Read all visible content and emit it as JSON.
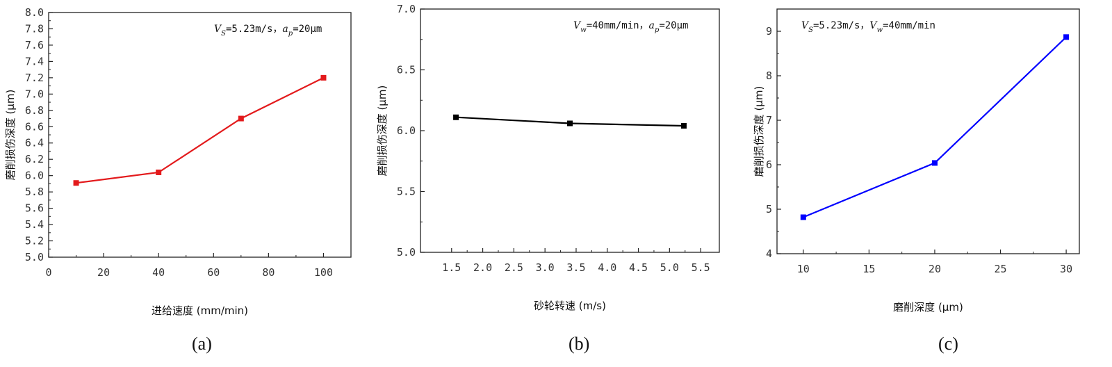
{
  "chart_data": [
    {
      "type": "line",
      "panel_label": "(a)",
      "xlabel": "进给速度 (mm/min)",
      "ylabel": "磨削损伤深度 (μm)",
      "annotation": {
        "v1": "V",
        "s1": "S",
        "t1": "=5.23m/s，",
        "v2": "a",
        "s2": "p",
        "t2": "=20μm"
      },
      "xlim": [
        0,
        110
      ],
      "ylim": [
        5.0,
        8.0
      ],
      "xticks": [
        "0",
        "20",
        "40",
        "60",
        "80",
        "100"
      ],
      "yticks": [
        "5.0",
        "5.2",
        "5.4",
        "5.6",
        "5.8",
        "6.0",
        "6.2",
        "6.4",
        "6.6",
        "6.8",
        "7.0",
        "7.2",
        "7.4",
        "7.6",
        "7.8",
        "8.0"
      ],
      "color": "#e31a1c",
      "series": [
        {
          "x": [
            10,
            40,
            70,
            100
          ],
          "y": [
            5.91,
            6.04,
            6.7,
            7.2
          ]
        }
      ]
    },
    {
      "type": "line",
      "panel_label": "(b)",
      "xlabel": "砂轮转速 (m/s)",
      "ylabel": "磨削损伤深度 (μm)",
      "annotation": {
        "v1": "V",
        "s1": "w",
        "t1": "=40mm/min，",
        "v2": "a",
        "s2": "p",
        "t2": "=20μm"
      },
      "xlim": [
        1.0,
        5.8
      ],
      "ylim": [
        5.0,
        7.0
      ],
      "xticks": [
        "1.5",
        "2.0",
        "2.5",
        "3.0",
        "3.5",
        "4.0",
        "4.5",
        "5.0",
        "5.5"
      ],
      "yticks": [
        "5.0",
        "5.5",
        "6.0",
        "6.5",
        "7.0"
      ],
      "color": "#000000",
      "series": [
        {
          "x": [
            1.57,
            3.4,
            5.23
          ],
          "y": [
            6.11,
            6.06,
            6.04
          ]
        }
      ]
    },
    {
      "type": "line",
      "panel_label": "(c)",
      "xlabel": "磨削深度 (μm)",
      "ylabel": "磨削损伤深度 (μm)",
      "annotation": {
        "v1": "V",
        "s1": "S",
        "t1": "=5.23m/s，",
        "v2": "V",
        "s2": "w",
        "t2": "=40mm/min"
      },
      "xlim": [
        8,
        31
      ],
      "ylim": [
        4,
        9.5
      ],
      "xticks": [
        "10",
        "15",
        "20",
        "25",
        "30"
      ],
      "yticks": [
        "4",
        "5",
        "6",
        "7",
        "8",
        "9"
      ],
      "color": "#0000ff",
      "series": [
        {
          "x": [
            10,
            20,
            30
          ],
          "y": [
            4.82,
            6.04,
            8.87
          ]
        }
      ]
    }
  ]
}
